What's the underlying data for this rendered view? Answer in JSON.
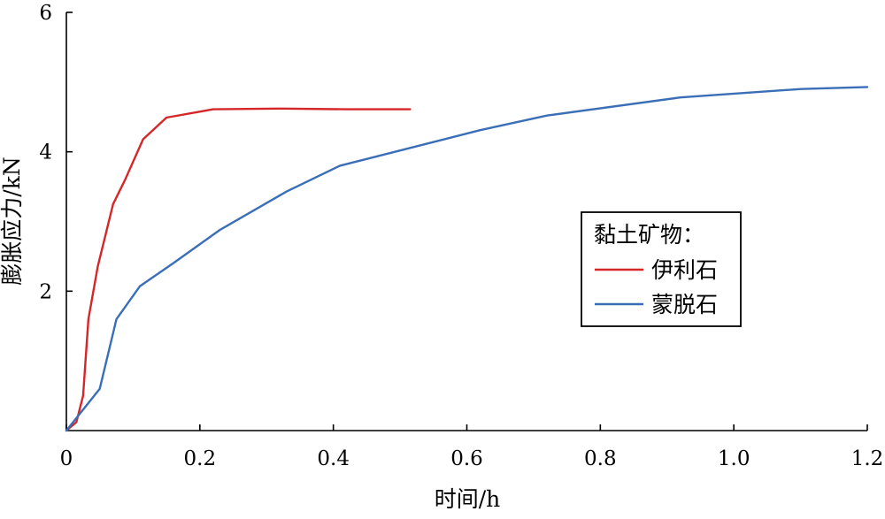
{
  "chart_data": {
    "type": "line",
    "xlabel": "时间/h",
    "ylabel": "膨胀应力/kN",
    "xlim": [
      0,
      1.2
    ],
    "ylim": [
      0,
      6
    ],
    "x_ticks": [
      "0",
      "0.2",
      "0.4",
      "0.6",
      "0.8",
      "1.0",
      "1.2"
    ],
    "y_ticks": [
      "2",
      "4",
      "6"
    ],
    "grid": false,
    "legend": {
      "title": "黏土矿物：",
      "placement": "center-right"
    },
    "series": [
      {
        "name": "伊利石",
        "color": "#d62728",
        "points": [
          [
            0.0,
            0.0
          ],
          [
            0.015,
            0.12
          ],
          [
            0.025,
            0.5
          ],
          [
            0.033,
            1.6
          ],
          [
            0.047,
            2.35
          ],
          [
            0.07,
            3.25
          ],
          [
            0.088,
            3.6
          ],
          [
            0.115,
            4.18
          ],
          [
            0.15,
            4.49
          ],
          [
            0.22,
            4.61
          ],
          [
            0.32,
            4.62
          ],
          [
            0.42,
            4.61
          ],
          [
            0.515,
            4.61
          ]
        ]
      },
      {
        "name": "蒙脱石",
        "color": "#3a6fb7",
        "points": [
          [
            0.0,
            0.0
          ],
          [
            0.05,
            0.6
          ],
          [
            0.075,
            1.6
          ],
          [
            0.11,
            2.07
          ],
          [
            0.16,
            2.4
          ],
          [
            0.23,
            2.88
          ],
          [
            0.33,
            3.43
          ],
          [
            0.41,
            3.8
          ],
          [
            0.62,
            4.31
          ],
          [
            0.72,
            4.52
          ],
          [
            0.92,
            4.78
          ],
          [
            1.1,
            4.9
          ],
          [
            1.2,
            4.93
          ]
        ]
      }
    ]
  }
}
